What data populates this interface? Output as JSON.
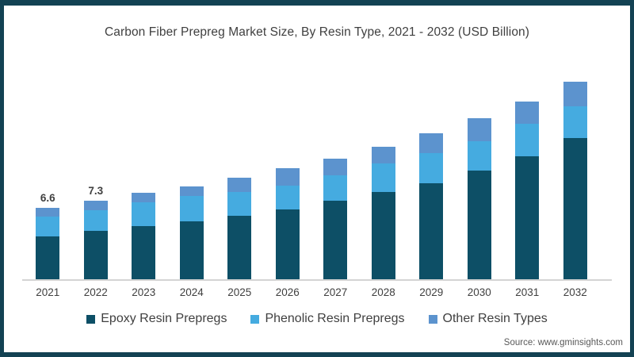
{
  "page": {
    "background": "#ffffff",
    "frame_border_color": "#134253"
  },
  "title": "Carbon Fiber Prepreg Market Size, By Resin Type, 2021 - 2032 (USD Billion)",
  "source_note": "Source: www.gminsights.com",
  "legend": {
    "position": "bottom",
    "items": [
      {
        "key": "epoxy",
        "label": "Epoxy Resin Prepregs",
        "color": "#0d4f66"
      },
      {
        "key": "phenolic",
        "label": "Phenolic Resin Prepregs",
        "color": "#45abe0"
      },
      {
        "key": "other",
        "label": "Other Resin Types",
        "color": "#5c93ce"
      }
    ]
  },
  "chart_data": {
    "type": "bar",
    "stacked": true,
    "title": "Carbon Fiber Prepreg Market Size, By Resin Type, 2021 - 2032 (USD Billion)",
    "unit": "USD Billion",
    "categories": [
      "2021",
      "2022",
      "2023",
      "2024",
      "2025",
      "2026",
      "2027",
      "2028",
      "2029",
      "2030",
      "2031",
      "2032"
    ],
    "series": [
      {
        "key": "epoxy",
        "name": "Epoxy Resin Prepregs",
        "color": "#0d4f66",
        "values": [
          4.0,
          4.5,
          4.9,
          5.4,
          5.9,
          6.5,
          7.3,
          8.1,
          8.9,
          10.1,
          11.4,
          13.1
        ]
      },
      {
        "key": "phenolic",
        "name": "Phenolic Resin Prepregs",
        "color": "#45abe0",
        "values": [
          1.8,
          1.9,
          2.2,
          2.3,
          2.2,
          2.2,
          2.3,
          2.6,
          2.8,
          2.7,
          3.0,
          2.9
        ]
      },
      {
        "key": "other",
        "name": "Other Resin Types",
        "color": "#5c93ce",
        "values": [
          0.8,
          0.9,
          0.9,
          0.9,
          1.3,
          1.6,
          1.6,
          1.6,
          1.8,
          2.1,
          2.1,
          2.3
        ]
      }
    ],
    "totals": [
      6.6,
      7.3,
      8.0,
      8.6,
      9.4,
      10.3,
      11.2,
      12.3,
      13.5,
      14.9,
      16.5,
      18.3
    ],
    "bar_value_labels": [
      "6.6",
      "7.3",
      "",
      "",
      "",
      "",
      "",
      "",
      "",
      "",
      "",
      ""
    ],
    "ylim": [
      0,
      19
    ],
    "grid": false,
    "y_axis_visible": false,
    "legend_position": "bottom"
  }
}
